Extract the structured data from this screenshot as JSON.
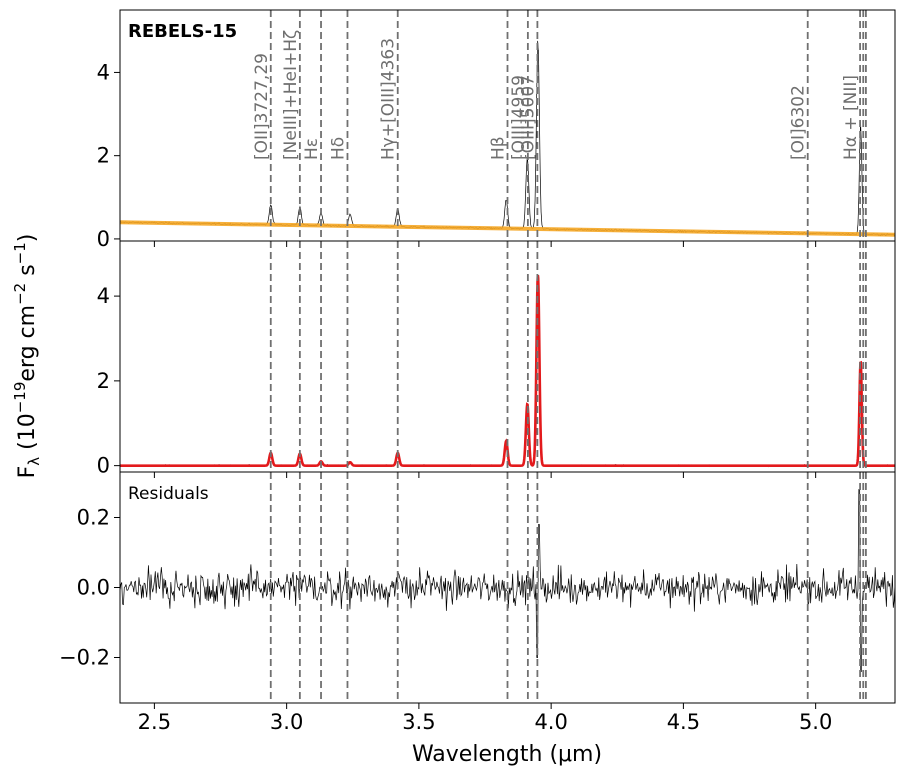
{
  "figure": {
    "object_label": "REBELS-15",
    "ylabel": "F",
    "ylabel_sub": "λ",
    "ylabel_unit": " (10",
    "ylabel_exp1": "−19",
    "ylabel_mid": "erg cm",
    "ylabel_exp2": "−2",
    "ylabel_mid2": " s",
    "ylabel_exp3": "−1",
    "ylabel_end": ")",
    "xlabel": "Wavelength (μm)",
    "residuals_label": "Residuals"
  },
  "chart_data": [
    {
      "type": "line",
      "panel": "top",
      "xlim": [
        2.37,
        5.3
      ],
      "ylim": [
        -0.05,
        5.5
      ],
      "yticks": [
        "0",
        "2",
        "4"
      ],
      "ytick_values": [
        0,
        2,
        4
      ],
      "series": [
        {
          "color": "#000000",
          "kind": "observed spectrum"
        },
        {
          "color": "#f5a623",
          "kind": "continuum fit",
          "x": [
            2.37,
            5.3
          ],
          "y": [
            0.4,
            0.1
          ]
        }
      ],
      "peaks": [
        {
          "x": 2.94,
          "peak": 0.5
        },
        {
          "x": 3.05,
          "peak": 0.45
        },
        {
          "x": 3.13,
          "peak": 0.3
        },
        {
          "x": 3.24,
          "peak": 0.28
        },
        {
          "x": 3.42,
          "peak": 0.45
        },
        {
          "x": 3.83,
          "peak": 0.7
        },
        {
          "x": 3.91,
          "peak": 1.75
        },
        {
          "x": 3.95,
          "peak": 4.6
        },
        {
          "x": 5.17,
          "peak": 2.7
        }
      ]
    },
    {
      "type": "line",
      "panel": "middle",
      "xlim": [
        2.37,
        5.3
      ],
      "ylim": [
        -0.15,
        5.3
      ],
      "yticks": [
        "0",
        "2",
        "4"
      ],
      "ytick_values": [
        0,
        2,
        4
      ],
      "series": [
        {
          "color": "#000000",
          "kind": "continuum-subtracted spectrum"
        },
        {
          "color": "#e31a1c",
          "kind": "line model"
        }
      ],
      "peaks": [
        {
          "x": 2.94,
          "peak": 0.3
        },
        {
          "x": 3.05,
          "peak": 0.28
        },
        {
          "x": 3.13,
          "peak": 0.1
        },
        {
          "x": 3.24,
          "peak": 0.08
        },
        {
          "x": 3.42,
          "peak": 0.3
        },
        {
          "x": 3.83,
          "peak": 0.58
        },
        {
          "x": 3.91,
          "peak": 1.45
        },
        {
          "x": 3.95,
          "peak": 4.5
        },
        {
          "x": 5.17,
          "peak": 2.45
        }
      ]
    },
    {
      "type": "line",
      "panel": "bottom",
      "xlim": [
        2.37,
        5.3
      ],
      "ylim": [
        -0.33,
        0.33
      ],
      "yticks": [
        "−0.2",
        "0.0",
        "0.2"
      ],
      "ytick_values": [
        -0.2,
        0.0,
        0.2
      ],
      "xticks": [
        "2.5",
        "3.0",
        "3.5",
        "4.0",
        "4.5",
        "5.0"
      ],
      "xtick_values": [
        2.5,
        3.0,
        3.5,
        4.0,
        4.5,
        5.0
      ],
      "series": [
        {
          "color": "#000000",
          "kind": "residuals"
        }
      ]
    }
  ],
  "lines": [
    {
      "label": "[OII]3727,29",
      "x": 2.94
    },
    {
      "label": "[NeIII]+HeI+Hζ",
      "x": 3.05
    },
    {
      "label": "Hε",
      "x": 3.13
    },
    {
      "label": "Hδ",
      "x": 3.23
    },
    {
      "label": "Hγ+[OIII]4363",
      "x": 3.42
    },
    {
      "label": "Hβ",
      "x": 3.835
    },
    {
      "label": "[OIII]4959",
      "x": 3.912
    },
    {
      "label": "[OIII]5007",
      "x": 3.948
    },
    {
      "label": "[OI]6302",
      "x": 4.97
    },
    {
      "label": "Hα + [NII]",
      "x": 5.168
    },
    {
      "label": "",
      "x": 5.18
    },
    {
      "label": "",
      "x": 5.19
    }
  ]
}
